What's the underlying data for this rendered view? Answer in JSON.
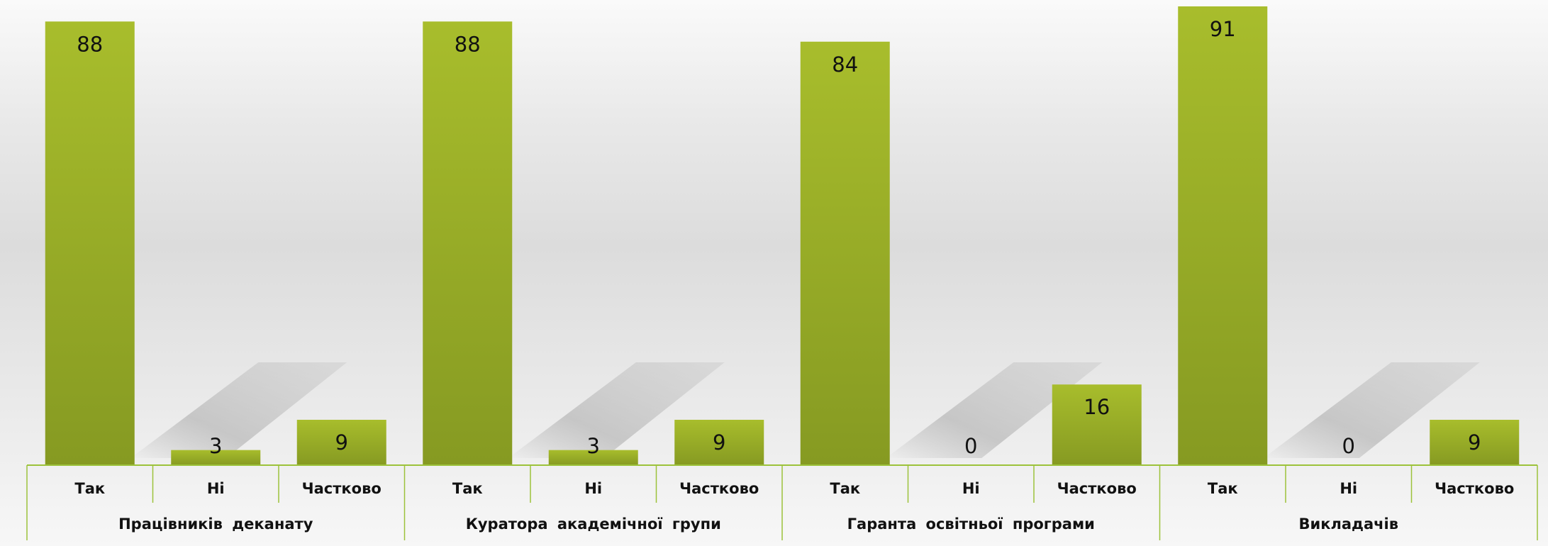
{
  "chart_data": {
    "type": "bar",
    "groups": [
      {
        "name": "Працівників  деканату",
        "categories": [
          "Так",
          "Ні",
          "Частково"
        ],
        "values": [
          88,
          3,
          9
        ]
      },
      {
        "name": "Куратора  академічної  групи",
        "categories": [
          "Так",
          "Ні",
          "Частково"
        ],
        "values": [
          88,
          3,
          9
        ]
      },
      {
        "name": "Гаранта  освітньої  програми",
        "categories": [
          "Так",
          "Ні",
          "Частково"
        ],
        "values": [
          84,
          0,
          16
        ]
      },
      {
        "name": "Викладачів",
        "categories": [
          "Так",
          "Ні",
          "Частково"
        ],
        "values": [
          91,
          0,
          9
        ]
      }
    ],
    "ylim": [
      0,
      91
    ],
    "data_labels": true,
    "grid": false,
    "legend": "none",
    "colors": {
      "bar_top": "#a8bd2c",
      "bar_bottom": "#869a22",
      "axis": "#9cc23a",
      "shadow": "#b3b3b3"
    }
  }
}
